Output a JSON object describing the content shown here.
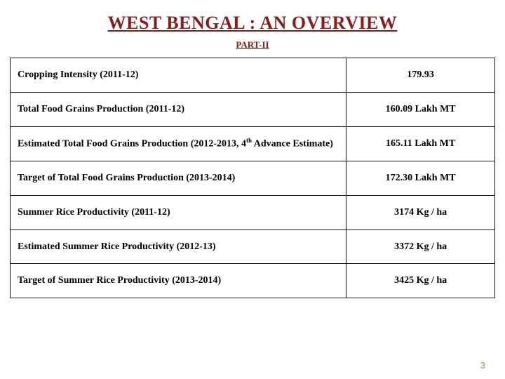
{
  "page": {
    "title": "WEST BENGAL : AN OVERVIEW",
    "subtitle": "PART-II",
    "page_number": "3"
  },
  "table": {
    "rows": [
      {
        "label": "Cropping Intensity  (2011-12)",
        "value": "179.93"
      },
      {
        "label": "Total Food Grains Production (2011-12)",
        "value": "160.09 Lakh MT"
      },
      {
        "label_pre": "Estimated Total Food Grains Production (2012-2013, 4",
        "label_sup": "th",
        "label_post": " Advance Estimate)",
        "value": "165.11 Lakh MT"
      },
      {
        "label": "Target of Total Food Grains Production (2013-2014)",
        "value": "172.30 Lakh MT"
      },
      {
        "label": "Summer Rice Productivity (2011-12)",
        "value": "3174 Kg / ha"
      },
      {
        "label": "Estimated Summer Rice Productivity (2012-13)",
        "value": "3372 Kg / ha"
      },
      {
        "label": "Target of Summer Rice Productivity (2013-2014)",
        "value": "3425 Kg / ha"
      }
    ]
  },
  "style": {
    "title_color": "#8b1a1a",
    "border_color": "#111111",
    "page_num_color": "#b08a60",
    "background": "#ffffff",
    "label_col_width": 480,
    "value_col_width": 212
  }
}
